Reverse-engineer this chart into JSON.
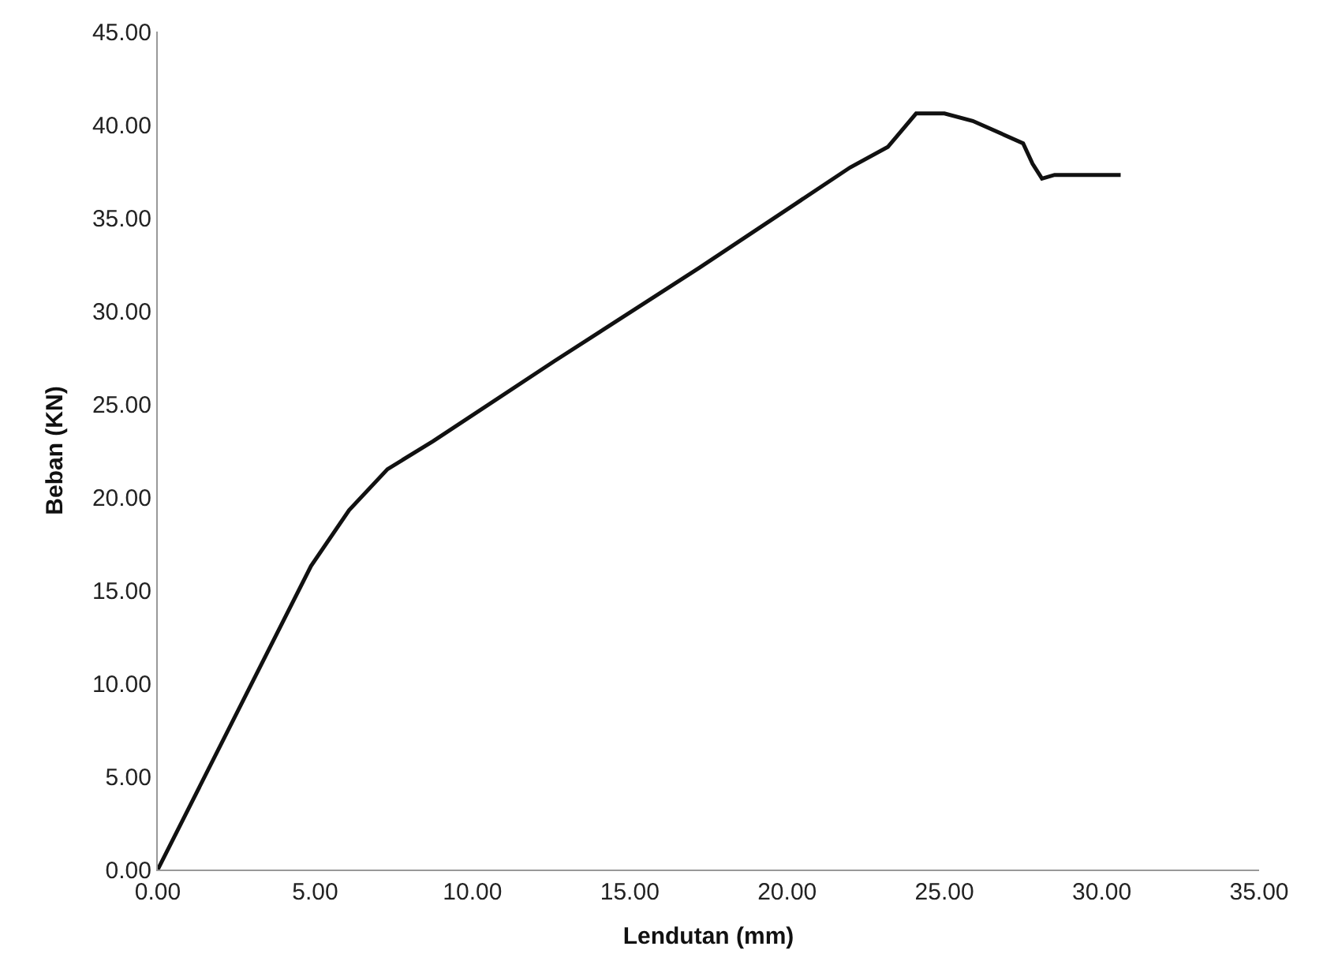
{
  "chart_data": {
    "type": "line",
    "xlabel": "Lendutan (mm)",
    "ylabel": "Beban (KN)",
    "x": [
      0,
      4.87,
      6.08,
      7.3,
      8.75,
      12.6,
      17.2,
      22.0,
      23.2,
      24.1,
      25.0,
      25.9,
      27.5,
      27.8,
      28.1,
      28.5,
      30.6
    ],
    "series": [
      {
        "color": "#111111",
        "values": [
          0,
          16.3,
          19.3,
          21.5,
          23.0,
          27.3,
          32.3,
          37.7,
          38.8,
          40.6,
          40.6,
          40.2,
          39.0,
          37.9,
          37.1,
          37.3,
          37.3
        ]
      }
    ],
    "xlim": [
      0,
      35
    ],
    "xticks": [
      {
        "value": 0,
        "label": "0.00"
      },
      {
        "value": 5,
        "label": "5.00"
      },
      {
        "value": 10,
        "label": "10.00"
      },
      {
        "value": 15,
        "label": "15.00"
      },
      {
        "value": 20,
        "label": "20.00"
      },
      {
        "value": 25,
        "label": "25.00"
      },
      {
        "value": 30,
        "label": "30.00"
      },
      {
        "value": 35,
        "label": "35.00"
      }
    ],
    "ylim": [
      0,
      45
    ],
    "yticks": [
      {
        "value": 0,
        "label": "0.00"
      },
      {
        "value": 5,
        "label": "5.00"
      },
      {
        "value": 10,
        "label": "10.00"
      },
      {
        "value": 15,
        "label": "15.00"
      },
      {
        "value": 20,
        "label": "20.00"
      },
      {
        "value": 25,
        "label": "25.00"
      },
      {
        "value": 30,
        "label": "30.00"
      },
      {
        "value": 35,
        "label": "35.00"
      },
      {
        "value": 40,
        "label": "40.00"
      },
      {
        "value": 45,
        "label": "45.00"
      }
    ],
    "grid": false,
    "marker": "none",
    "line_style": "solid"
  }
}
